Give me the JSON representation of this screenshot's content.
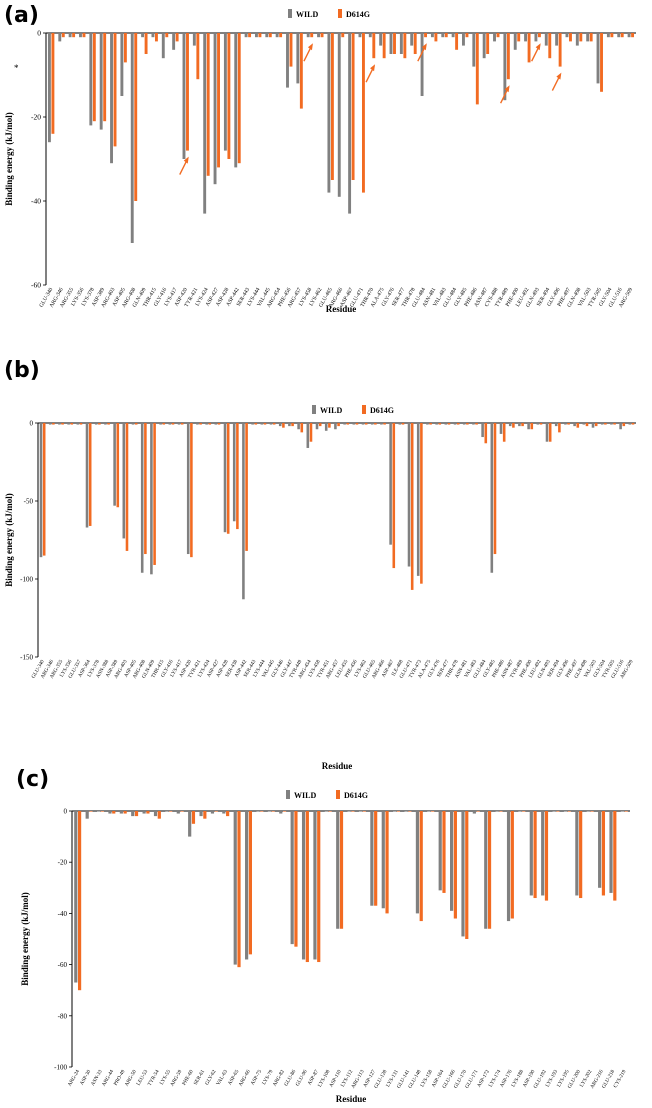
{
  "colors": {
    "wild": "#808080",
    "mutant": "#f26b22",
    "axis": "#000000"
  },
  "panels": [
    {
      "label": "(a)"
    },
    {
      "label": "(b)"
    },
    {
      "label": "(c)"
    }
  ],
  "chart_data": [
    {
      "type": "bar",
      "panel": "(a)",
      "xlabel": "Residue",
      "ylabel": "Binding energy (kJ/mol)",
      "ylim": [
        -60,
        0
      ],
      "yticks": [
        0,
        -20,
        -40,
        -60
      ],
      "legend": {
        "placement": "top-center"
      },
      "asterisk": "*",
      "arrows": [
        "ASP-420",
        "LYS-458",
        "THR-470",
        "GLU-484",
        "TYR-489",
        "GLN-493",
        "GLY-496"
      ],
      "categories": [
        "GLU-340",
        "ARG-346",
        "ARG-355",
        "LYS-356",
        "LYS-378",
        "ASP-389",
        "ARG-403",
        "ASP-405",
        "ARG-408",
        "GLN-409",
        "THR-415",
        "GLY-416",
        "LYS-417",
        "ASP-420",
        "TYR-421",
        "LYS-424",
        "ASP-427",
        "ASP-428",
        "ASP-442",
        "SER-443",
        "LYS-444",
        "VAL-445",
        "ARG-454",
        "PHE-456",
        "ARG-457",
        "LYS-458",
        "LYS-462",
        "GLU-465",
        "ARG-466",
        "ASP-467",
        "GLU-471",
        "THR-470",
        "ALA-475",
        "GLY-476",
        "SER-477",
        "THR-478",
        "GLU-484",
        "ASN-481",
        "VAL-483",
        "GLU-484",
        "GLY-485",
        "PHE-486",
        "ASN-487",
        "CYS-488",
        "TYR-489",
        "PHE-490",
        "LEU-492",
        "GLN-493",
        "SER-494",
        "GLY-496",
        "PHE-497",
        "GLN-498",
        "VAL-503",
        "TYR-505",
        "GLY-504",
        "GLU-516",
        "ARG-509"
      ],
      "series": [
        {
          "name": "WILD",
          "values": [
            -26,
            -2,
            -1,
            -1,
            -22,
            -23,
            -31,
            -15,
            -50,
            -1,
            -1,
            -6,
            -4,
            -30,
            -3,
            -43,
            -36,
            -28,
            -32,
            -1,
            -1,
            -1,
            -1,
            -13,
            -12,
            -1,
            -1,
            -38,
            -39,
            -43,
            -1,
            -1,
            -3,
            -5,
            -5,
            -3,
            -15,
            -1,
            -1,
            -1,
            -3,
            -8,
            -6,
            -2,
            -16,
            -4,
            -2,
            -2,
            -3,
            -3,
            -1,
            -3,
            -2,
            -12,
            -1,
            -1,
            -1
          ]
        },
        {
          "name": "D614G",
          "values": [
            -24,
            -1,
            -1,
            -1,
            -21,
            -21,
            -27,
            -7,
            -40,
            -5,
            -2,
            -1,
            -2,
            -28,
            -11,
            -34,
            -32,
            -30,
            -31,
            -1,
            -1,
            -1,
            -1,
            -8,
            -18,
            -1,
            -1,
            -35,
            -1,
            -35,
            -38,
            -6,
            -6,
            -5,
            -6,
            -5,
            -1,
            -2,
            -1,
            -4,
            -1,
            -17,
            -5,
            -1,
            -11,
            -2,
            -7,
            -1,
            -6,
            -8,
            -2,
            -2,
            -2,
            -14,
            -1,
            -1,
            -1
          ]
        }
      ]
    },
    {
      "type": "bar",
      "panel": "(b)",
      "xlabel": "Residue",
      "ylabel": "Binding energy (kJ/mol)",
      "ylim": [
        -150,
        0
      ],
      "yticks": [
        0,
        -50,
        -100,
        -150
      ],
      "legend": {
        "placement": "top-center"
      },
      "categories": [
        "GLU-340",
        "ARG-346",
        "ARG-355",
        "LYS-356",
        "GLU-357",
        "ASP-364",
        "LYS-378",
        "ASN-388",
        "ASP-389",
        "ARG-403",
        "ASP-405",
        "ARG-408",
        "GLN-409",
        "THR-415",
        "GLY-416",
        "LYS-417",
        "ASP-420",
        "TYR-421",
        "LYS-424",
        "ASP-427",
        "ASP-428",
        "SER-438",
        "ASP-442",
        "SER-443",
        "LYS-444",
        "VAL-445",
        "GLY-446",
        "GLY-447",
        "TYR-449",
        "ARG-454",
        "LYS-458",
        "TYR-451",
        "ARG-457",
        "LEU-455",
        "PHE-456",
        "LYS-462",
        "GLU-465",
        "ARG-466",
        "ASP-467",
        "ILE-468",
        "GLU-471",
        "TYR-473",
        "ALA-475",
        "GLY-476",
        "SER-477",
        "THR-478",
        "ASN-481",
        "VAL-483",
        "GLU-484",
        "GLY-485",
        "PHE-486",
        "ASN-487",
        "TYR-489",
        "PHE-490",
        "LEU-492",
        "GLN-493",
        "SER-494",
        "GLY-496",
        "PHE-497",
        "GLN-498",
        "VAL-503",
        "GLY-504",
        "TYR-505",
        "GLU-516",
        "ARG-509"
      ],
      "series": [
        {
          "name": "WILD",
          "values": [
            -86,
            -1,
            -1,
            -1,
            -1,
            -67,
            -1,
            -1,
            -53,
            -74,
            -1,
            -96,
            -97,
            -1,
            -1,
            -1,
            -84,
            -1,
            -1,
            -1,
            -70,
            -63,
            -113,
            -1,
            -1,
            -1,
            -2,
            -2,
            -4,
            -16,
            -4,
            -5,
            -4,
            -1,
            -1,
            -1,
            -1,
            -1,
            -78,
            -1,
            -92,
            -98,
            -1,
            -1,
            -1,
            -1,
            -1,
            -1,
            -9,
            -96,
            -7,
            -2,
            -2,
            -4,
            -1,
            -12,
            -2,
            -1,
            -2,
            -1,
            -3,
            -1,
            -1,
            -4,
            -1
          ]
        },
        {
          "name": "D614G",
          "values": [
            -85,
            -1,
            -1,
            -1,
            -1,
            -66,
            -1,
            -1,
            -54,
            -82,
            -1,
            -84,
            -91,
            -1,
            -1,
            -1,
            -86,
            -1,
            -1,
            -1,
            -71,
            -68,
            -82,
            -1,
            -1,
            -1,
            -3,
            -2,
            -6,
            -12,
            -2,
            -3,
            -2,
            -1,
            -1,
            -1,
            -1,
            -1,
            -93,
            -1,
            -107,
            -103,
            -1,
            -1,
            -1,
            -1,
            -1,
            -1,
            -13,
            -84,
            -12,
            -3,
            -2,
            -4,
            -1,
            -12,
            -6,
            -1,
            -3,
            -2,
            -2,
            -1,
            -1,
            -2,
            -1
          ]
        }
      ]
    },
    {
      "type": "bar",
      "panel": "(c)",
      "xlabel": "Residue",
      "ylabel": "Binding energy (kJ/mol)",
      "ylim": [
        -100,
        0
      ],
      "yticks": [
        0,
        -20,
        -40,
        -60,
        -80,
        -100
      ],
      "legend": {
        "placement": "top-center"
      },
      "categories": [
        "ARG-24",
        "ASP-30",
        "ASN-33",
        "ARG-44",
        "PRO-49",
        "ARG-50",
        "LEU-53",
        "TYR-54",
        "LYS-55",
        "ARG-59",
        "PHE-60",
        "SER-61",
        "GLY-62",
        "VAL-63",
        "ASP-65",
        "ARG-66",
        "ASP-75",
        "LYS-79",
        "ARG-82",
        "GLU-86",
        "GLU-96",
        "ASP-87",
        "LYS-108",
        "ASP-110",
        "LYS-112",
        "ARG-113",
        "ASP-127",
        "GLU-128",
        "LYS-131",
        "GLU-141",
        "GLU-148",
        "LYS-158",
        "ASP-164",
        "GLU-166",
        "GLU-170",
        "GLU-171",
        "ASP-172",
        "LYS-174",
        "ASP-176",
        "LYS-188",
        "ASP-190",
        "GLU-192",
        "LYS-193",
        "LYS-195",
        "GLU-200",
        "LYS-202",
        "ARG-216",
        "GLU-218",
        "CYS-219"
      ],
      "series": [
        {
          "name": "WILD",
          "values": [
            -67,
            -3,
            0,
            -1,
            -1,
            -2,
            -1,
            -2,
            0,
            -1,
            -10,
            -2,
            -1,
            -1,
            -60,
            -58,
            0,
            0,
            -1,
            -52,
            -58,
            -58,
            0,
            -46,
            0,
            0,
            -37,
            -38,
            0,
            0,
            -40,
            0,
            -31,
            -39,
            -49,
            -1,
            -46,
            0,
            -43,
            0,
            -33,
            -33,
            0,
            0,
            -33,
            0,
            -30,
            -32,
            0
          ]
        },
        {
          "name": "D614G",
          "values": [
            -70,
            0,
            0,
            -1,
            -1,
            -2,
            -1,
            -3,
            0,
            0,
            -5,
            -3,
            0,
            -2,
            -61,
            -56,
            0,
            0,
            0,
            -53,
            -59,
            -59,
            0,
            -46,
            0,
            0,
            -37,
            -40,
            0,
            0,
            -43,
            0,
            -32,
            -42,
            -50,
            0,
            -46,
            0,
            -42,
            0,
            -34,
            -35,
            0,
            0,
            -34,
            0,
            -33,
            -35,
            0
          ]
        }
      ]
    }
  ]
}
